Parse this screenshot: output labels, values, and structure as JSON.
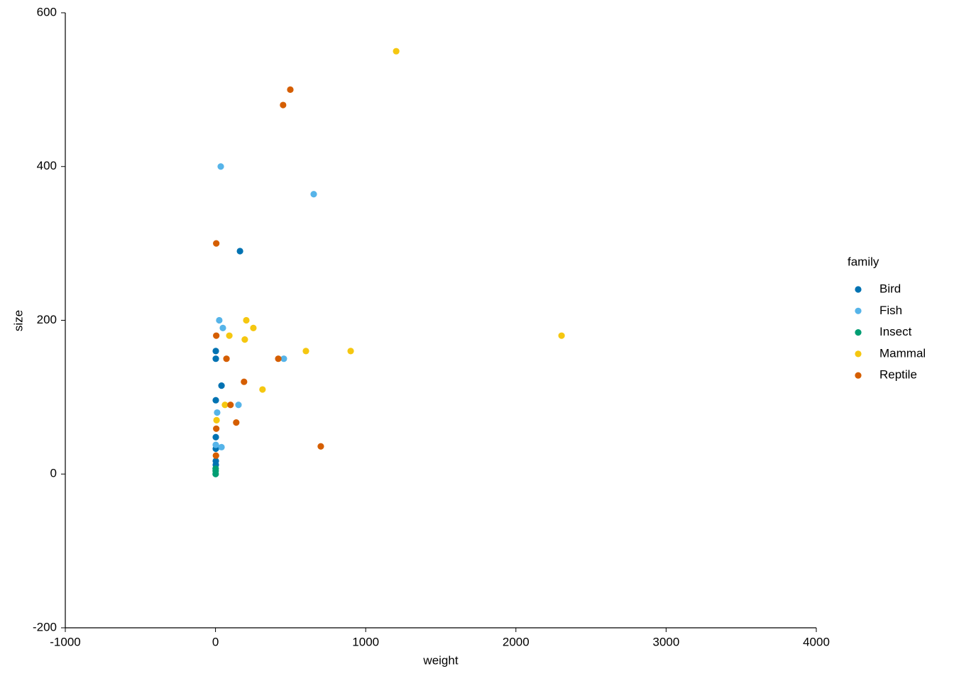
{
  "chart_data": {
    "type": "scatter",
    "x_label": "weight",
    "y_label": "size",
    "legend_title": "family",
    "xlim": [
      -1000,
      4000
    ],
    "xticks": [
      -1000,
      0,
      1000,
      2000,
      3000,
      4000
    ],
    "ylim": [
      -200,
      600
    ],
    "yticks": [
      -200,
      0,
      200,
      400,
      600
    ],
    "grid": false,
    "legend": "right",
    "series": [
      {
        "name": "Bird",
        "color": "#0072B2",
        "x": [
          163,
          2,
          2,
          40,
          2,
          2,
          2,
          2,
          2
        ],
        "y": [
          290,
          160,
          150,
          115,
          96,
          48,
          33,
          17,
          12
        ]
      },
      {
        "name": "Fish",
        "color": "#56B4E9",
        "x": [
          35,
          654,
          25,
          49,
          455,
          153,
          11,
          40,
          2
        ],
        "y": [
          400,
          364,
          200,
          190,
          150,
          90,
          80,
          35,
          38
        ]
      },
      {
        "name": "Insect",
        "color": "#009E73",
        "x": [
          1,
          1,
          1
        ],
        "y": [
          0,
          4,
          7
        ]
      },
      {
        "name": "Mammal",
        "color": "#F5C710",
        "x": [
          1203,
          2304,
          205,
          252,
          195,
          92,
          602,
          900,
          313,
          63,
          7
        ],
        "y": [
          550,
          180,
          200,
          190,
          175,
          180,
          160,
          160,
          110,
          90,
          70
        ]
      },
      {
        "name": "Reptile",
        "color": "#D55E00",
        "x": [
          498,
          450,
          5,
          5,
          73,
          418,
          190,
          100,
          138,
          701,
          5,
          3
        ],
        "y": [
          500,
          480,
          300,
          180,
          150,
          150,
          120,
          90,
          67,
          36,
          59,
          24
        ]
      }
    ]
  }
}
